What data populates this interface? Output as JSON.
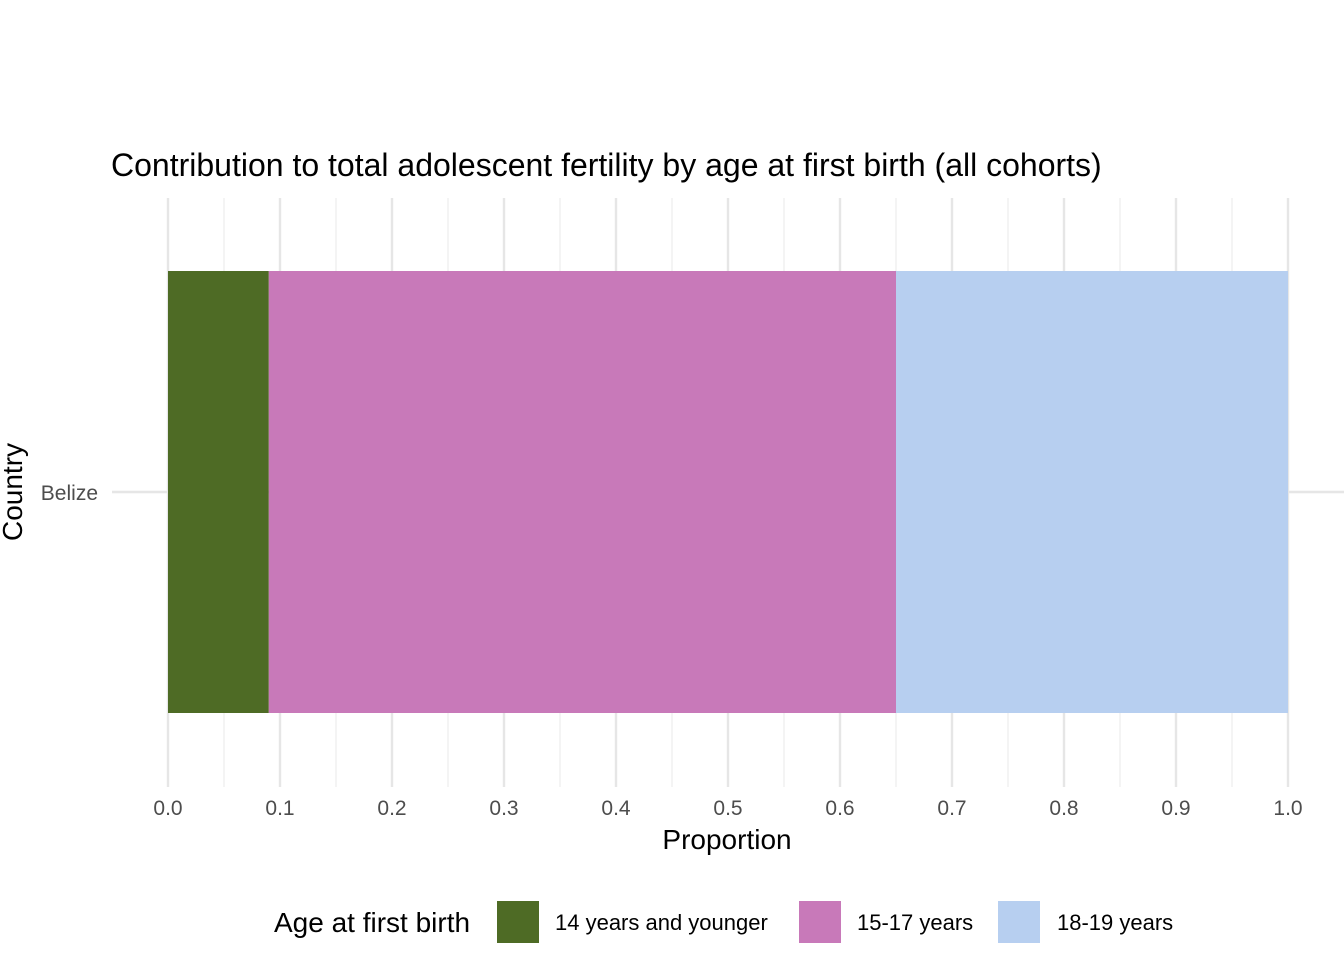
{
  "chart_data": {
    "type": "bar",
    "orientation": "horizontal",
    "stacked": true,
    "title": "Contribution to total adolescent fertility by age at first birth (all cohorts)",
    "xlabel": "Proportion",
    "ylabel": "Country",
    "categories": [
      "Belize"
    ],
    "xlim": [
      0,
      1
    ],
    "xticks": [
      "0.0",
      "0.1",
      "0.2",
      "0.3",
      "0.4",
      "0.5",
      "0.6",
      "0.7",
      "0.8",
      "0.9",
      "1.0"
    ],
    "grid": true,
    "legend_title": "Age at first birth",
    "legend_position": "bottom",
    "series": [
      {
        "name": "14 years and younger",
        "color": "#4e6b25",
        "values": [
          0.09
        ]
      },
      {
        "name": "15-17 years",
        "color": "#c879b9",
        "values": [
          0.56
        ]
      },
      {
        "name": "18-19 years",
        "color": "#b7cff0",
        "values": [
          0.35
        ]
      }
    ]
  }
}
